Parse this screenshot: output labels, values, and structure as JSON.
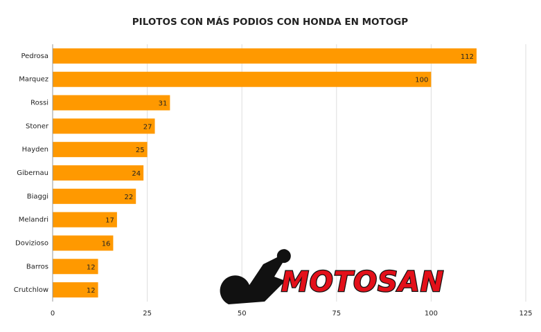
{
  "chart_data": {
    "type": "bar",
    "orientation": "horizontal",
    "title": "PILOTOS CON MÁS PODIOS CON HONDA EN MOTOGP",
    "categories": [
      "Pedrosa",
      "Marquez",
      "Rossi",
      "Stoner",
      "Hayden",
      "Gibernau",
      "Biaggi",
      "Melandri",
      "Dovizioso",
      "Barros",
      "Crutchlow"
    ],
    "values": [
      112,
      100,
      31,
      27,
      25,
      24,
      22,
      17,
      16,
      12,
      12
    ],
    "color": "#ff9900",
    "xlim": [
      0,
      125
    ],
    "xticks": [
      0,
      25,
      50,
      75,
      100,
      125
    ],
    "grid": true,
    "watermark": "MOTOSAN"
  }
}
